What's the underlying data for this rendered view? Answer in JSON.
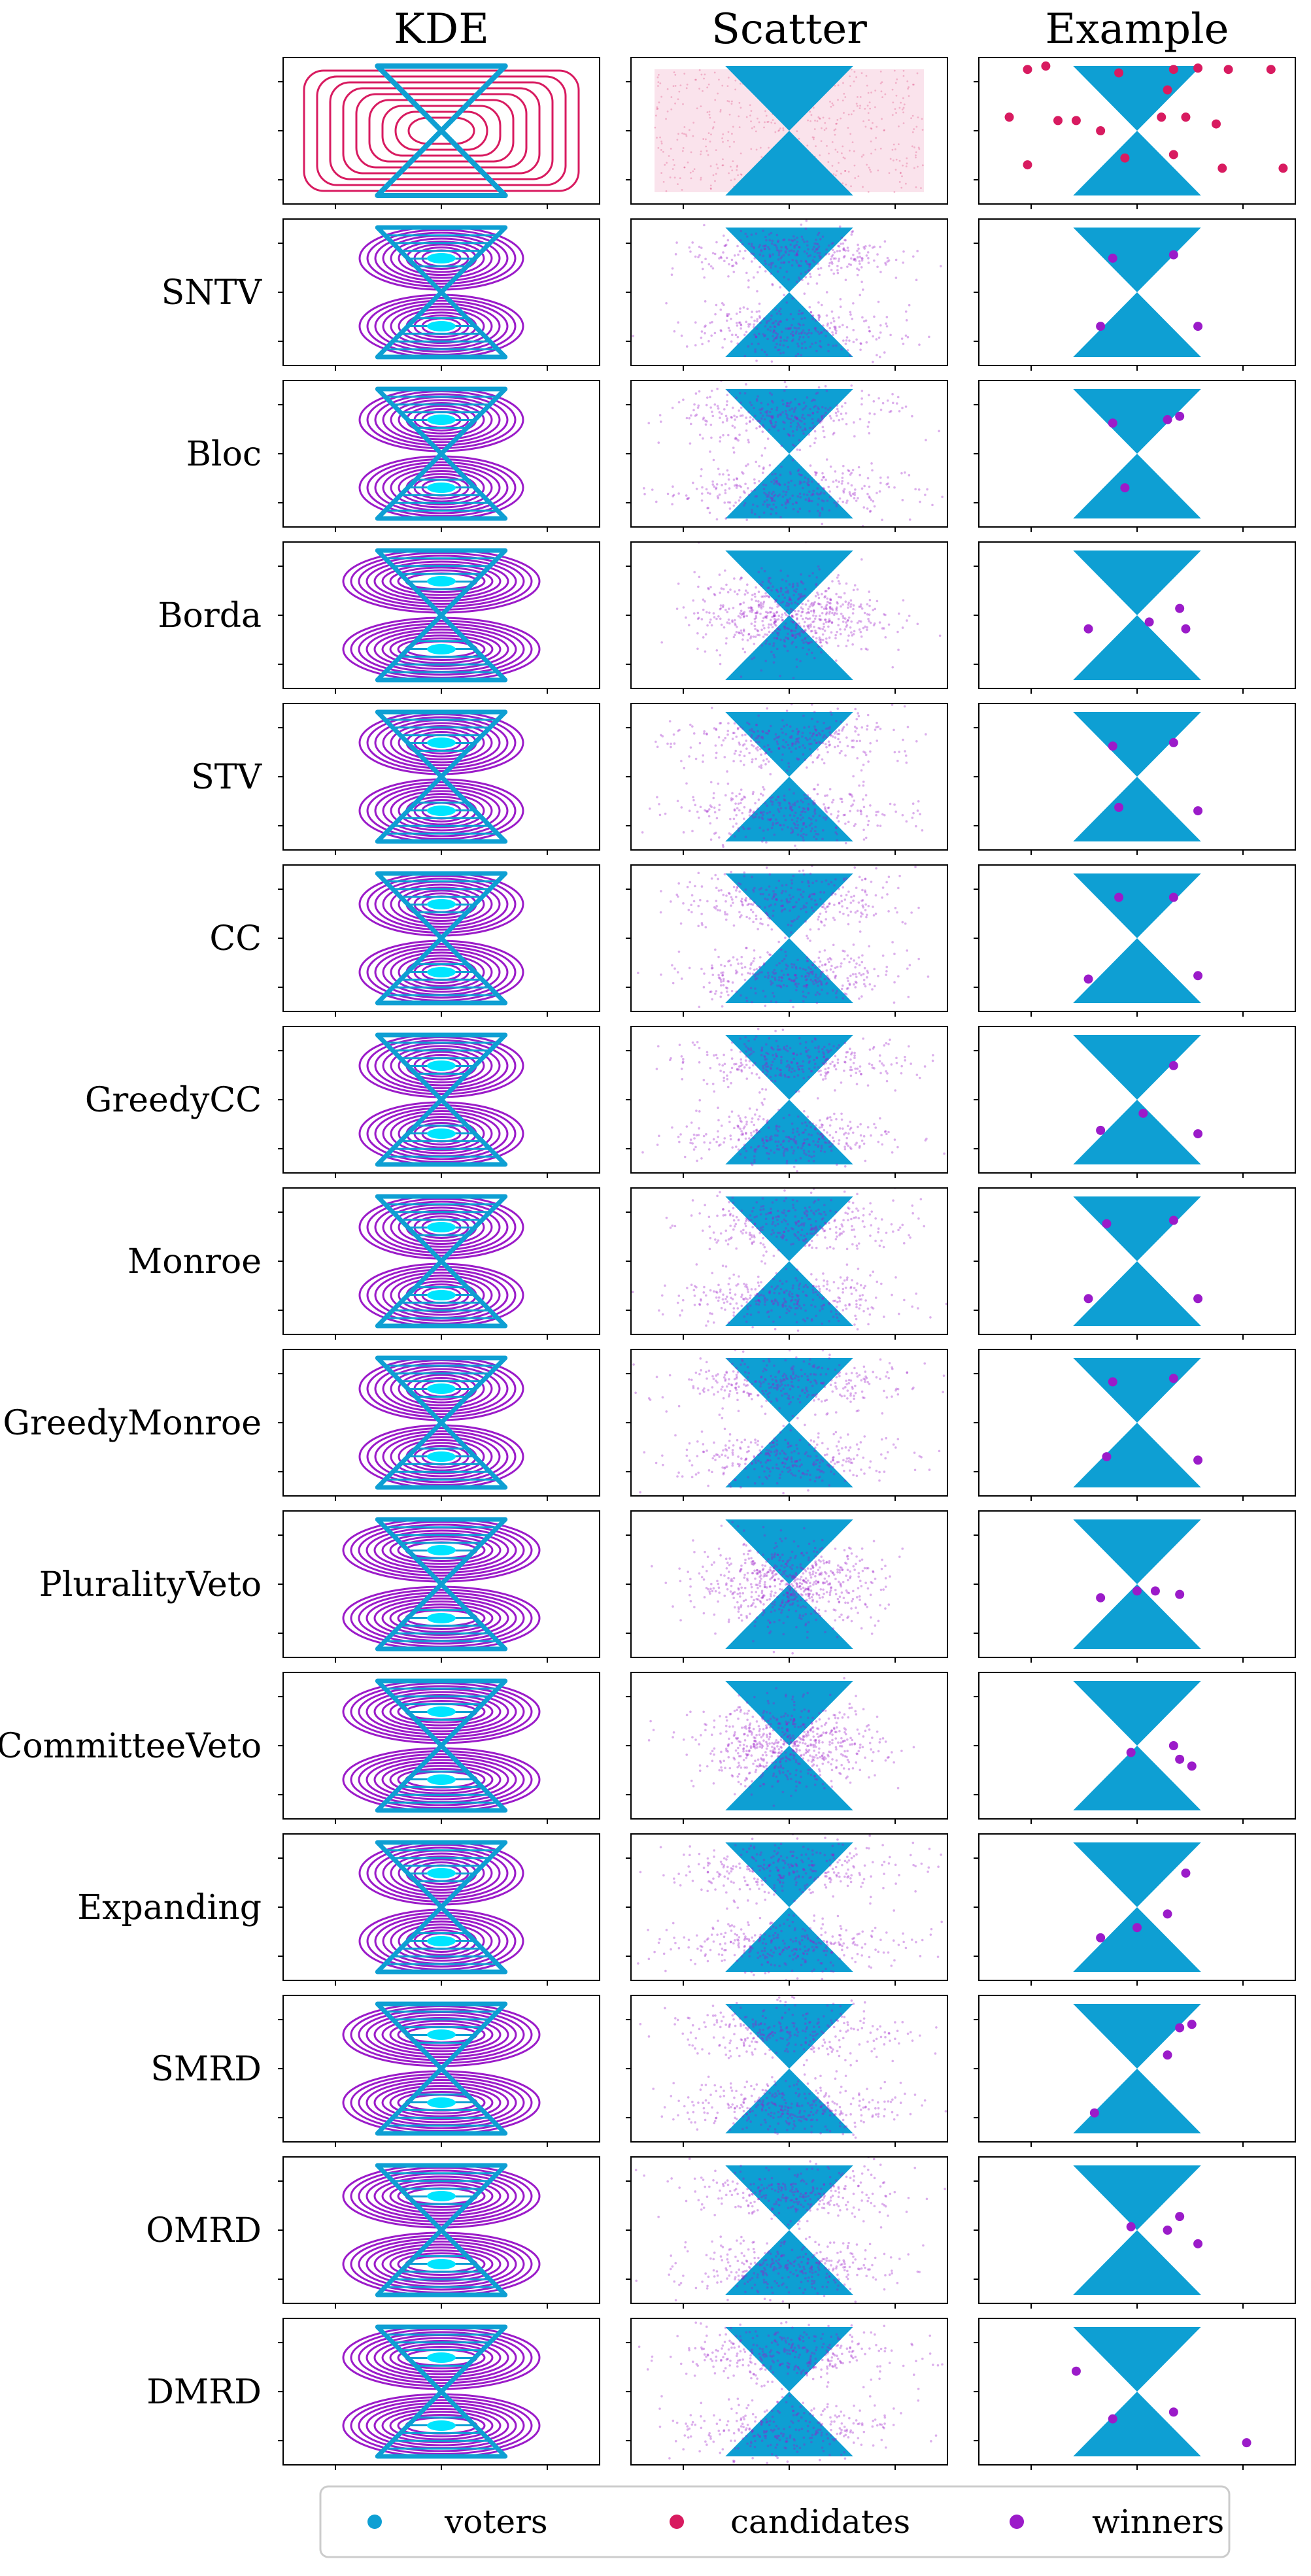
{
  "colors": {
    "voters": "#0e9fd3",
    "candidates": "#d81b60",
    "winners": "#9b1bc9",
    "kde_winner_inner": "#00e5ff",
    "frame": "#000000"
  },
  "chart_data": {
    "type": "scatter",
    "layout": "grid of small-multiple panels: 15 rows x 3 columns, no tick labels",
    "columns": [
      "KDE",
      "Scatter",
      "Example"
    ],
    "rows": [
      "",
      "SNTV",
      "Bloc",
      "Borda",
      "STV",
      "CC",
      "GreedyCC",
      "Monroe",
      "GreedyMonroe",
      "PluralityVeto",
      "CommitteeVeto",
      "Expanding",
      "SMRD",
      "OMRD",
      "DMRD"
    ],
    "legend": {
      "placement": "bottom-center",
      "entries": [
        {
          "label": "voters",
          "color": "#0e9fd3"
        },
        {
          "label": "candidates",
          "color": "#d81b60"
        },
        {
          "label": "winners",
          "color": "#9b1bc9"
        }
      ]
    },
    "voter_distribution": "hourglass (two triangles meeting at center)",
    "axes": {
      "x_ticks": 3,
      "y_ticks": 3,
      "tick_labels": "none",
      "grid": false
    },
    "example_points": [
      {
        "row": "",
        "series": "candidates",
        "points": [
          [
            -1.8,
            0.9
          ],
          [
            -1.5,
            0.95
          ],
          [
            -0.3,
            0.85
          ],
          [
            0.6,
            0.9
          ],
          [
            1.0,
            0.92
          ],
          [
            1.5,
            0.9
          ],
          [
            2.2,
            0.9
          ],
          [
            0.5,
            0.6
          ],
          [
            -2.1,
            0.2
          ],
          [
            -1.3,
            0.15
          ],
          [
            -1.0,
            0.15
          ],
          [
            -0.6,
            0.0
          ],
          [
            0.4,
            0.2
          ],
          [
            0.8,
            0.2
          ],
          [
            1.3,
            0.1
          ],
          [
            -1.8,
            -0.5
          ],
          [
            -0.2,
            -0.4
          ],
          [
            0.6,
            -0.35
          ],
          [
            1.4,
            -0.55
          ],
          [
            2.4,
            -0.55
          ]
        ]
      },
      {
        "row": "SNTV",
        "series": "winners",
        "points": [
          [
            -0.4,
            0.5
          ],
          [
            0.6,
            0.55
          ],
          [
            -0.6,
            -0.5
          ],
          [
            1.0,
            -0.5
          ]
        ]
      },
      {
        "row": "Bloc",
        "series": "winners",
        "points": [
          [
            -0.4,
            0.45
          ],
          [
            0.5,
            0.5
          ],
          [
            0.7,
            0.55
          ],
          [
            -0.2,
            -0.5
          ]
        ]
      },
      {
        "row": "Borda",
        "series": "winners",
        "points": [
          [
            -0.8,
            -0.2
          ],
          [
            0.2,
            -0.1
          ],
          [
            0.7,
            0.1
          ],
          [
            0.8,
            -0.2
          ]
        ]
      },
      {
        "row": "STV",
        "series": "winners",
        "points": [
          [
            -0.4,
            0.45
          ],
          [
            0.6,
            0.5
          ],
          [
            -0.3,
            -0.45
          ],
          [
            1.0,
            -0.5
          ]
        ]
      },
      {
        "row": "CC",
        "series": "winners",
        "points": [
          [
            -0.3,
            0.6
          ],
          [
            0.6,
            0.6
          ],
          [
            -0.8,
            -0.6
          ],
          [
            1.0,
            -0.55
          ]
        ]
      },
      {
        "row": "GreedyCC",
        "series": "winners",
        "points": [
          [
            -0.6,
            -0.45
          ],
          [
            0.1,
            -0.2
          ],
          [
            0.6,
            0.5
          ],
          [
            1.0,
            -0.5
          ]
        ]
      },
      {
        "row": "Monroe",
        "series": "winners",
        "points": [
          [
            -0.5,
            0.55
          ],
          [
            0.6,
            0.6
          ],
          [
            -0.8,
            -0.55
          ],
          [
            1.0,
            -0.55
          ]
        ]
      },
      {
        "row": "GreedyMonroe",
        "series": "winners",
        "points": [
          [
            -0.4,
            0.6
          ],
          [
            0.6,
            0.65
          ],
          [
            -0.5,
            -0.5
          ],
          [
            1.0,
            -0.55
          ]
        ]
      },
      {
        "row": "PluralityVeto",
        "series": "winners",
        "points": [
          [
            -0.6,
            -0.2
          ],
          [
            0.0,
            -0.1
          ],
          [
            0.3,
            -0.1
          ],
          [
            0.7,
            -0.15
          ]
        ]
      },
      {
        "row": "CommitteeVeto",
        "series": "winners",
        "points": [
          [
            -0.1,
            -0.1
          ],
          [
            0.6,
            0.0
          ],
          [
            0.7,
            -0.2
          ],
          [
            0.9,
            -0.3
          ]
        ]
      },
      {
        "row": "Expanding",
        "series": "winners",
        "points": [
          [
            -0.6,
            -0.45
          ],
          [
            0.0,
            -0.3
          ],
          [
            0.5,
            -0.1
          ],
          [
            0.8,
            0.5
          ]
        ]
      },
      {
        "row": "SMRD",
        "series": "winners",
        "points": [
          [
            -0.7,
            -0.65
          ],
          [
            0.5,
            0.2
          ],
          [
            0.7,
            0.6
          ],
          [
            0.9,
            0.65
          ]
        ]
      },
      {
        "row": "OMRD",
        "series": "winners",
        "points": [
          [
            -0.1,
            0.05
          ],
          [
            0.7,
            0.2
          ],
          [
            0.5,
            0.0
          ],
          [
            1.0,
            -0.2
          ]
        ]
      },
      {
        "row": "DMRD",
        "series": "winners",
        "points": [
          [
            -1.0,
            0.3
          ],
          [
            -0.4,
            -0.4
          ],
          [
            0.6,
            -0.3
          ],
          [
            1.8,
            -0.75
          ]
        ]
      }
    ]
  }
}
